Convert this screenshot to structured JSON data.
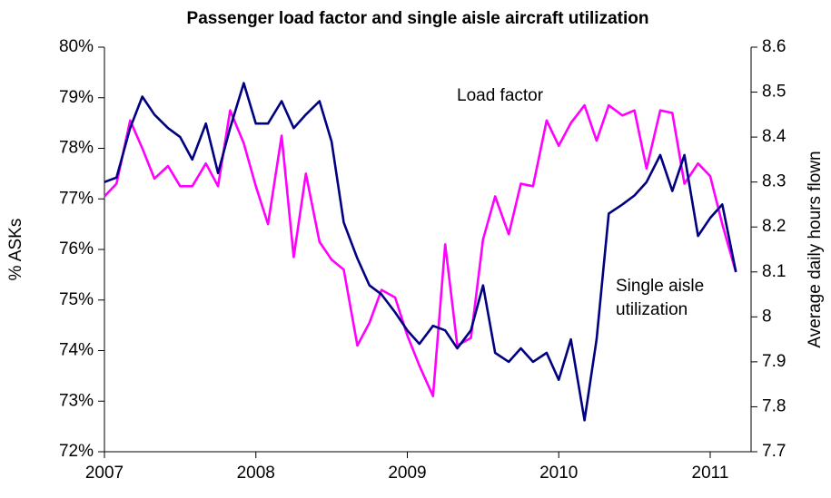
{
  "chart_data": {
    "type": "line",
    "title": "Passenger load factor and single aisle aircraft utilization",
    "ylabel": "% ASKs",
    "y2label": "Average daily hours flown",
    "annotations": [
      "Load factor",
      "Single aisle",
      "utilization"
    ],
    "x": [
      2007.0,
      2007.08,
      2007.17,
      2007.25,
      2007.33,
      2007.42,
      2007.5,
      2007.58,
      2007.67,
      2007.75,
      2007.83,
      2007.92,
      2008.0,
      2008.08,
      2008.17,
      2008.25,
      2008.33,
      2008.42,
      2008.5,
      2008.58,
      2008.67,
      2008.75,
      2008.83,
      2008.92,
      2009.0,
      2009.08,
      2009.17,
      2009.25,
      2009.33,
      2009.42,
      2009.5,
      2009.58,
      2009.67,
      2009.75,
      2009.83,
      2009.92,
      2010.0,
      2010.08,
      2010.17,
      2010.25,
      2010.33,
      2010.42,
      2010.5,
      2010.58,
      2010.67,
      2010.75,
      2010.83,
      2010.92,
      2011.0,
      2011.08,
      2011.17
    ],
    "series": [
      {
        "name": "Load factor",
        "color": "#ff00ff",
        "axis": "y",
        "values": [
          77.05,
          77.3,
          78.55,
          78.0,
          77.4,
          77.65,
          77.25,
          77.25,
          77.7,
          77.25,
          78.75,
          78.1,
          77.25,
          76.5,
          78.25,
          75.85,
          77.5,
          76.15,
          75.8,
          75.6,
          74.1,
          74.55,
          75.2,
          75.05,
          74.3,
          73.7,
          73.1,
          76.1,
          74.1,
          74.25,
          76.2,
          77.05,
          76.3,
          77.3,
          77.25,
          78.55,
          78.05,
          78.5,
          78.85,
          78.15,
          78.85,
          78.65,
          78.75,
          77.6,
          78.75,
          78.7,
          77.3,
          77.7,
          77.45,
          76.5,
          75.55
        ]
      },
      {
        "name": "Single aisle utilization",
        "color": "#000080",
        "axis": "y2",
        "values": [
          8.3,
          8.31,
          8.42,
          8.49,
          8.45,
          8.42,
          8.4,
          8.35,
          8.43,
          8.32,
          8.42,
          8.52,
          8.43,
          8.43,
          8.48,
          8.42,
          8.45,
          8.48,
          8.39,
          8.21,
          8.13,
          8.07,
          8.05,
          8.01,
          7.97,
          7.94,
          7.98,
          7.97,
          7.93,
          7.97,
          8.07,
          7.92,
          7.9,
          7.93,
          7.9,
          7.92,
          7.86,
          7.95,
          7.77,
          7.95,
          8.23,
          8.25,
          8.27,
          8.3,
          8.36,
          8.28,
          8.36,
          8.18,
          8.22,
          8.25,
          8.1
        ]
      }
    ],
    "xlim": [
      2007,
      2011.27
    ],
    "xticks": [
      2007,
      2008,
      2009,
      2010,
      2011
    ],
    "ylim": [
      72,
      80
    ],
    "yticks": [
      {
        "value": 72,
        "label": "72%"
      },
      {
        "value": 73,
        "label": "73%"
      },
      {
        "value": 74,
        "label": "74%"
      },
      {
        "value": 75,
        "label": "75%"
      },
      {
        "value": 76,
        "label": "76%"
      },
      {
        "value": 77,
        "label": "77%"
      },
      {
        "value": 78,
        "label": "78%"
      },
      {
        "value": 79,
        "label": "79%"
      },
      {
        "value": 80,
        "label": "80%"
      }
    ],
    "y2lim": [
      7.7,
      8.6
    ],
    "y2ticks": [
      7.7,
      7.8,
      7.9,
      8,
      8.1,
      8.2,
      8.3,
      8.4,
      8.5,
      8.6
    ]
  }
}
